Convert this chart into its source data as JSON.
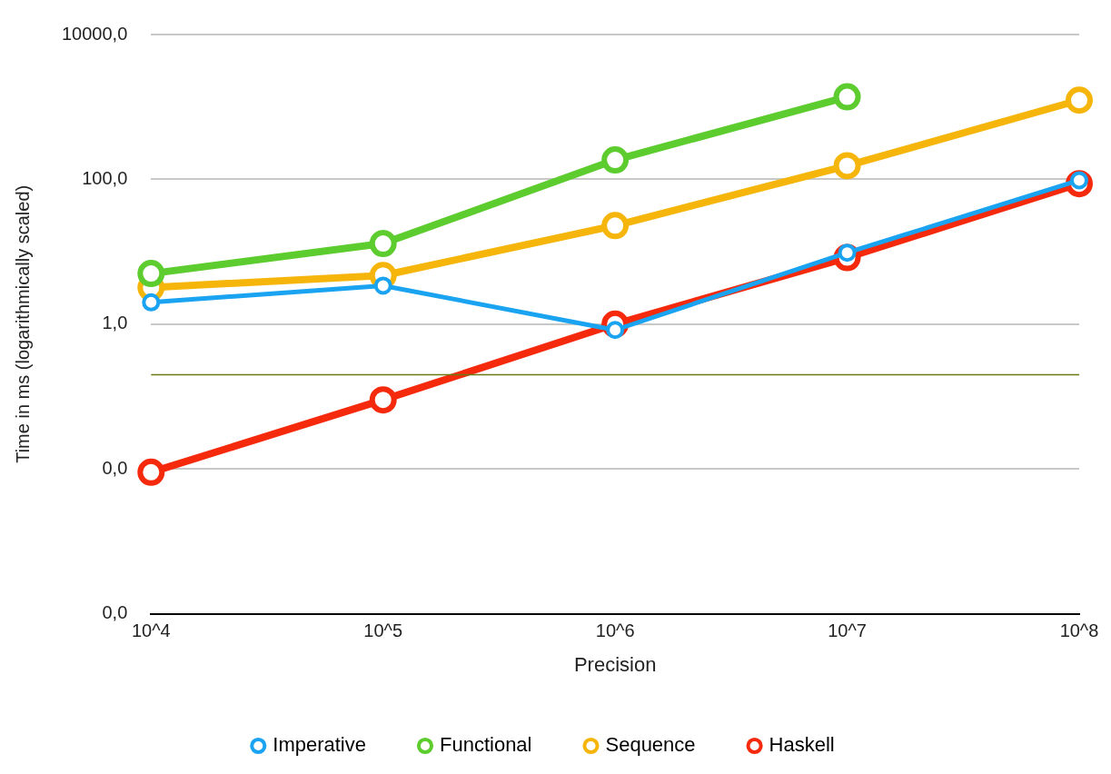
{
  "chart_data": {
    "type": "line",
    "xlabel": "Precision",
    "ylabel": "Time in ms (logarithmically scaled)",
    "categories": [
      "10^4",
      "10^5",
      "10^6",
      "10^7",
      "10^8"
    ],
    "series": [
      {
        "name": "Imperative",
        "color": "#1aa3f0",
        "values": [
          2.0,
          3.4,
          0.83,
          9.7,
          97
        ]
      },
      {
        "name": "Functional",
        "color": "#5ccc2e",
        "values": [
          5.0,
          13,
          185,
          1380,
          null
        ]
      },
      {
        "name": "Sequence",
        "color": "#f5b50a",
        "values": [
          3.2,
          4.7,
          23,
          154,
          1240
        ]
      },
      {
        "name": "Haskell",
        "color": "#f52a0c",
        "values": [
          0.009,
          0.09,
          1.0,
          8.3,
          87
        ]
      }
    ],
    "log": "y",
    "ylim": [
      0.0001,
      10000
    ],
    "yticks": [
      {
        "value": 0.0001,
        "label": "0,0"
      },
      {
        "value": 0.01,
        "label": "0,0"
      },
      {
        "value": 1,
        "label": "1,0"
      },
      {
        "value": 100,
        "label": "100,0"
      },
      {
        "value": 10000,
        "label": "10000,0"
      }
    ],
    "ref_lines": [
      {
        "axis": "y",
        "value": 0.2,
        "color": "#6b7a10",
        "line_style": "solid"
      }
    ],
    "grid": "y",
    "legend": "bottom",
    "marker": "circle",
    "line_style": "solid"
  }
}
